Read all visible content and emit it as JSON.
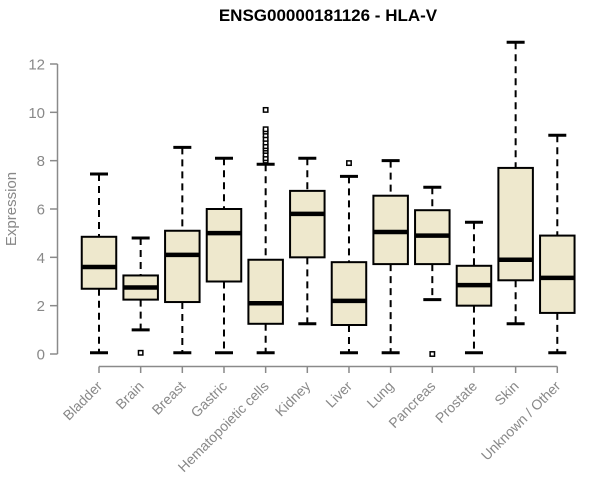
{
  "colors": {
    "background": "#ffffff",
    "box_fill": "#EEE8CD",
    "box_border": "#000000",
    "median_line": "#000000",
    "whisker": "#000000",
    "axis_line": "#8a8a8a",
    "tick_label": "#888888",
    "axis_title": "#888888",
    "title_text": "#000000"
  },
  "chart_data": {
    "type": "boxplot",
    "title": "ENSG00000181126 - HLA-V",
    "xlabel": "",
    "ylabel": "Expression",
    "ylim": [
      0,
      13
    ],
    "yticks": [
      0,
      2,
      4,
      6,
      8,
      10,
      12
    ],
    "grid": false,
    "legend": false,
    "categories": [
      "Bladder",
      "Brain",
      "Breast",
      "Gastric",
      "Hematopoietic cells",
      "Kidney",
      "Liver",
      "Lung",
      "Pancreas",
      "Prostate",
      "Skin",
      "Unknown / Other"
    ],
    "series": [
      {
        "name": "Bladder",
        "low": 0.05,
        "q1": 2.7,
        "median": 3.6,
        "q3": 4.85,
        "high": 7.45,
        "outliers": []
      },
      {
        "name": "Brain",
        "low": 1.0,
        "q1": 2.25,
        "median": 2.75,
        "q3": 3.25,
        "high": 4.8,
        "outliers": [
          0.05
        ]
      },
      {
        "name": "Breast",
        "low": 0.05,
        "q1": 2.15,
        "median": 4.1,
        "q3": 5.1,
        "high": 8.55,
        "outliers": []
      },
      {
        "name": "Gastric",
        "low": 0.05,
        "q1": 3.0,
        "median": 5.0,
        "q3": 6.0,
        "high": 8.1,
        "outliers": []
      },
      {
        "name": "Hematopoietic cells",
        "low": 0.05,
        "q1": 1.25,
        "median": 2.1,
        "q3": 3.9,
        "high": 7.85,
        "outliers": [
          8.0,
          8.1,
          8.25,
          8.4,
          8.5,
          8.6,
          8.75,
          8.9,
          9.05,
          9.2,
          9.3,
          10.1
        ]
      },
      {
        "name": "Kidney",
        "low": 1.25,
        "q1": 4.0,
        "median": 5.8,
        "q3": 6.75,
        "high": 8.1,
        "outliers": []
      },
      {
        "name": "Liver",
        "low": 0.05,
        "q1": 1.2,
        "median": 2.2,
        "q3": 3.8,
        "high": 7.35,
        "outliers": [
          7.9
        ]
      },
      {
        "name": "Lung",
        "low": 0.05,
        "q1": 3.72,
        "median": 5.05,
        "q3": 6.55,
        "high": 8.0,
        "outliers": []
      },
      {
        "name": "Pancreas",
        "low": 2.25,
        "q1": 3.72,
        "median": 4.9,
        "q3": 5.95,
        "high": 6.9,
        "outliers": [
          0.0
        ]
      },
      {
        "name": "Prostate",
        "low": 0.05,
        "q1": 2.0,
        "median": 2.85,
        "q3": 3.65,
        "high": 5.45,
        "outliers": []
      },
      {
        "name": "Skin",
        "low": 1.25,
        "q1": 3.05,
        "median": 3.9,
        "q3": 7.7,
        "high": 12.9,
        "outliers": []
      },
      {
        "name": "Unknown / Other",
        "low": 0.05,
        "q1": 1.7,
        "median": 3.15,
        "q3": 4.9,
        "high": 9.05,
        "outliers": []
      }
    ]
  }
}
